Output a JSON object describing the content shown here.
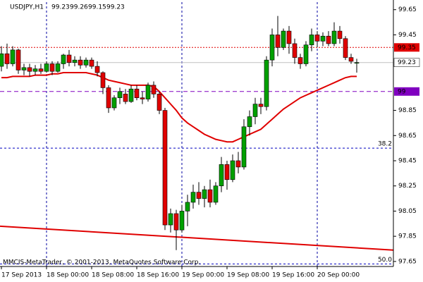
{
  "chart_data": {
    "type": "candlestick",
    "title": "USDJPY,H1",
    "watermark": "MMCIS-MetaTrader, © 2001-2013, MetaQuotes Software Corp.",
    "x": [
      "17 Sep 2013",
      null,
      null,
      null,
      null,
      null,
      null,
      null,
      "18 Sep 00:00",
      null,
      null,
      null,
      null,
      null,
      null,
      null,
      "18 Sep 08:00",
      null,
      null,
      null,
      null,
      null,
      null,
      null,
      "18 Sep 16:00",
      null,
      null,
      null,
      null,
      null,
      null,
      null,
      "19 Sep 00:00",
      null,
      null,
      null,
      null,
      null,
      null,
      null,
      "19 Sep 08:00",
      null,
      null,
      null,
      null,
      null,
      null,
      null,
      "19 Sep 16:00",
      null,
      null,
      null,
      null,
      null,
      null,
      null,
      "20 Sep 00:00",
      null,
      null,
      null,
      null,
      null,
      null,
      null
    ],
    "open": [
      99.2,
      99.3,
      99.22,
      99.33,
      99.17,
      99.19,
      99.16,
      99.18,
      99.16,
      99.22,
      99.16,
      99.22,
      99.29,
      99.23,
      99.25,
      99.21,
      99.25,
      99.2,
      99.15,
      99.03,
      98.87,
      98.95,
      98.98,
      98.92,
      99.02,
      98.95,
      98.94,
      99.05,
      98.98,
      98.85,
      97.94,
      98.03,
      97.9,
      98.05,
      98.12,
      98.2,
      98.15,
      98.22,
      98.12,
      98.25,
      98.42,
      98.3,
      98.45,
      98.4,
      98.72,
      98.8,
      98.9,
      98.88,
      99.25,
      99.45,
      99.35,
      99.48,
      99.38,
      99.27,
      99.22,
      99.37,
      99.45,
      99.4,
      99.44,
      99.38,
      99.48,
      99.42,
      99.27,
      99.23
    ],
    "high": [
      99.36,
      99.38,
      99.36,
      99.34,
      99.22,
      99.22,
      99.21,
      99.22,
      99.24,
      99.24,
      99.24,
      99.3,
      99.33,
      99.28,
      99.28,
      99.27,
      99.27,
      99.24,
      99.16,
      99.05,
      98.97,
      99.03,
      99.02,
      99.05,
      99.05,
      99.0,
      99.07,
      99.08,
      99.0,
      98.87,
      98.07,
      98.06,
      98.1,
      98.18,
      98.26,
      98.28,
      98.25,
      98.3,
      98.28,
      98.48,
      98.45,
      98.5,
      98.52,
      98.78,
      98.85,
      98.95,
      98.95,
      99.28,
      99.5,
      99.6,
      99.5,
      99.52,
      99.42,
      99.3,
      99.4,
      99.5,
      99.48,
      99.47,
      99.48,
      99.55,
      99.52,
      99.44,
      99.3,
      99.26
    ],
    "low": [
      99.16,
      99.18,
      99.2,
      99.14,
      99.13,
      99.12,
      99.13,
      99.14,
      99.15,
      99.13,
      99.15,
      99.18,
      99.2,
      99.2,
      99.18,
      99.19,
      99.18,
      99.12,
      98.98,
      98.83,
      98.85,
      98.9,
      98.9,
      98.91,
      98.93,
      98.9,
      98.92,
      98.95,
      98.82,
      97.9,
      97.88,
      97.74,
      97.88,
      97.93,
      98.07,
      98.1,
      98.08,
      98.08,
      98.1,
      98.2,
      98.22,
      98.28,
      98.35,
      98.38,
      98.65,
      98.74,
      98.82,
      98.85,
      99.2,
      99.28,
      99.33,
      99.3,
      99.22,
      99.18,
      99.2,
      99.32,
      99.35,
      99.36,
      99.36,
      99.36,
      99.38,
      99.25,
      99.22,
      99.15
    ],
    "close": [
      99.3,
      99.22,
      99.33,
      99.17,
      99.19,
      99.16,
      99.18,
      99.16,
      99.22,
      99.16,
      99.22,
      99.29,
      99.23,
      99.25,
      99.21,
      99.25,
      99.2,
      99.15,
      99.03,
      98.87,
      98.95,
      99.0,
      98.92,
      99.02,
      98.95,
      98.94,
      99.05,
      98.98,
      98.85,
      97.94,
      98.03,
      97.9,
      98.05,
      98.12,
      98.2,
      98.15,
      98.22,
      98.12,
      98.25,
      98.42,
      98.3,
      98.45,
      98.4,
      98.72,
      98.8,
      98.9,
      98.88,
      99.25,
      99.45,
      99.35,
      99.48,
      99.38,
      99.27,
      99.22,
      99.37,
      99.45,
      99.4,
      99.44,
      99.38,
      99.48,
      99.42,
      99.27,
      99.24,
      99.23
    ],
    "up_color": "#00a000",
    "down_color": "#e00000",
    "ma": {
      "color": "#e00000",
      "values": [
        99.11,
        99.11,
        99.12,
        99.12,
        99.12,
        99.12,
        99.13,
        99.13,
        99.13,
        99.14,
        99.14,
        99.15,
        99.15,
        99.15,
        99.15,
        99.15,
        99.14,
        99.13,
        99.11,
        99.09,
        99.08,
        99.07,
        99.06,
        99.05,
        99.05,
        99.05,
        99.05,
        99.04,
        99.0,
        98.95,
        98.9,
        98.85,
        98.79,
        98.75,
        98.72,
        98.69,
        98.66,
        98.64,
        98.62,
        98.61,
        98.6,
        98.6,
        98.62,
        98.64,
        98.66,
        98.68,
        98.7,
        98.74,
        98.78,
        98.82,
        98.86,
        98.89,
        98.92,
        98.95,
        98.97,
        98.99,
        99.01,
        99.03,
        99.05,
        99.07,
        99.09,
        99.11,
        99.12,
        99.12
      ]
    },
    "trendline": {
      "color": "#e00000",
      "values": [
        97.93,
        97.74
      ]
    },
    "levels": [
      {
        "value": 99.35,
        "color": "#e00000"
      },
      {
        "value": 99.0,
        "color": "#8000c0"
      }
    ],
    "fib": [
      {
        "value": 98.55,
        "label": "38.2"
      },
      {
        "value": 97.63,
        "label": "50.0"
      }
    ],
    "fib_color": "#0000c0",
    "ylim": [
      97.61,
      99.71
    ],
    "yticks": [
      97.65,
      97.85,
      98.05,
      98.25,
      98.45,
      98.65,
      98.85,
      99.45,
      99.65
    ]
  }
}
